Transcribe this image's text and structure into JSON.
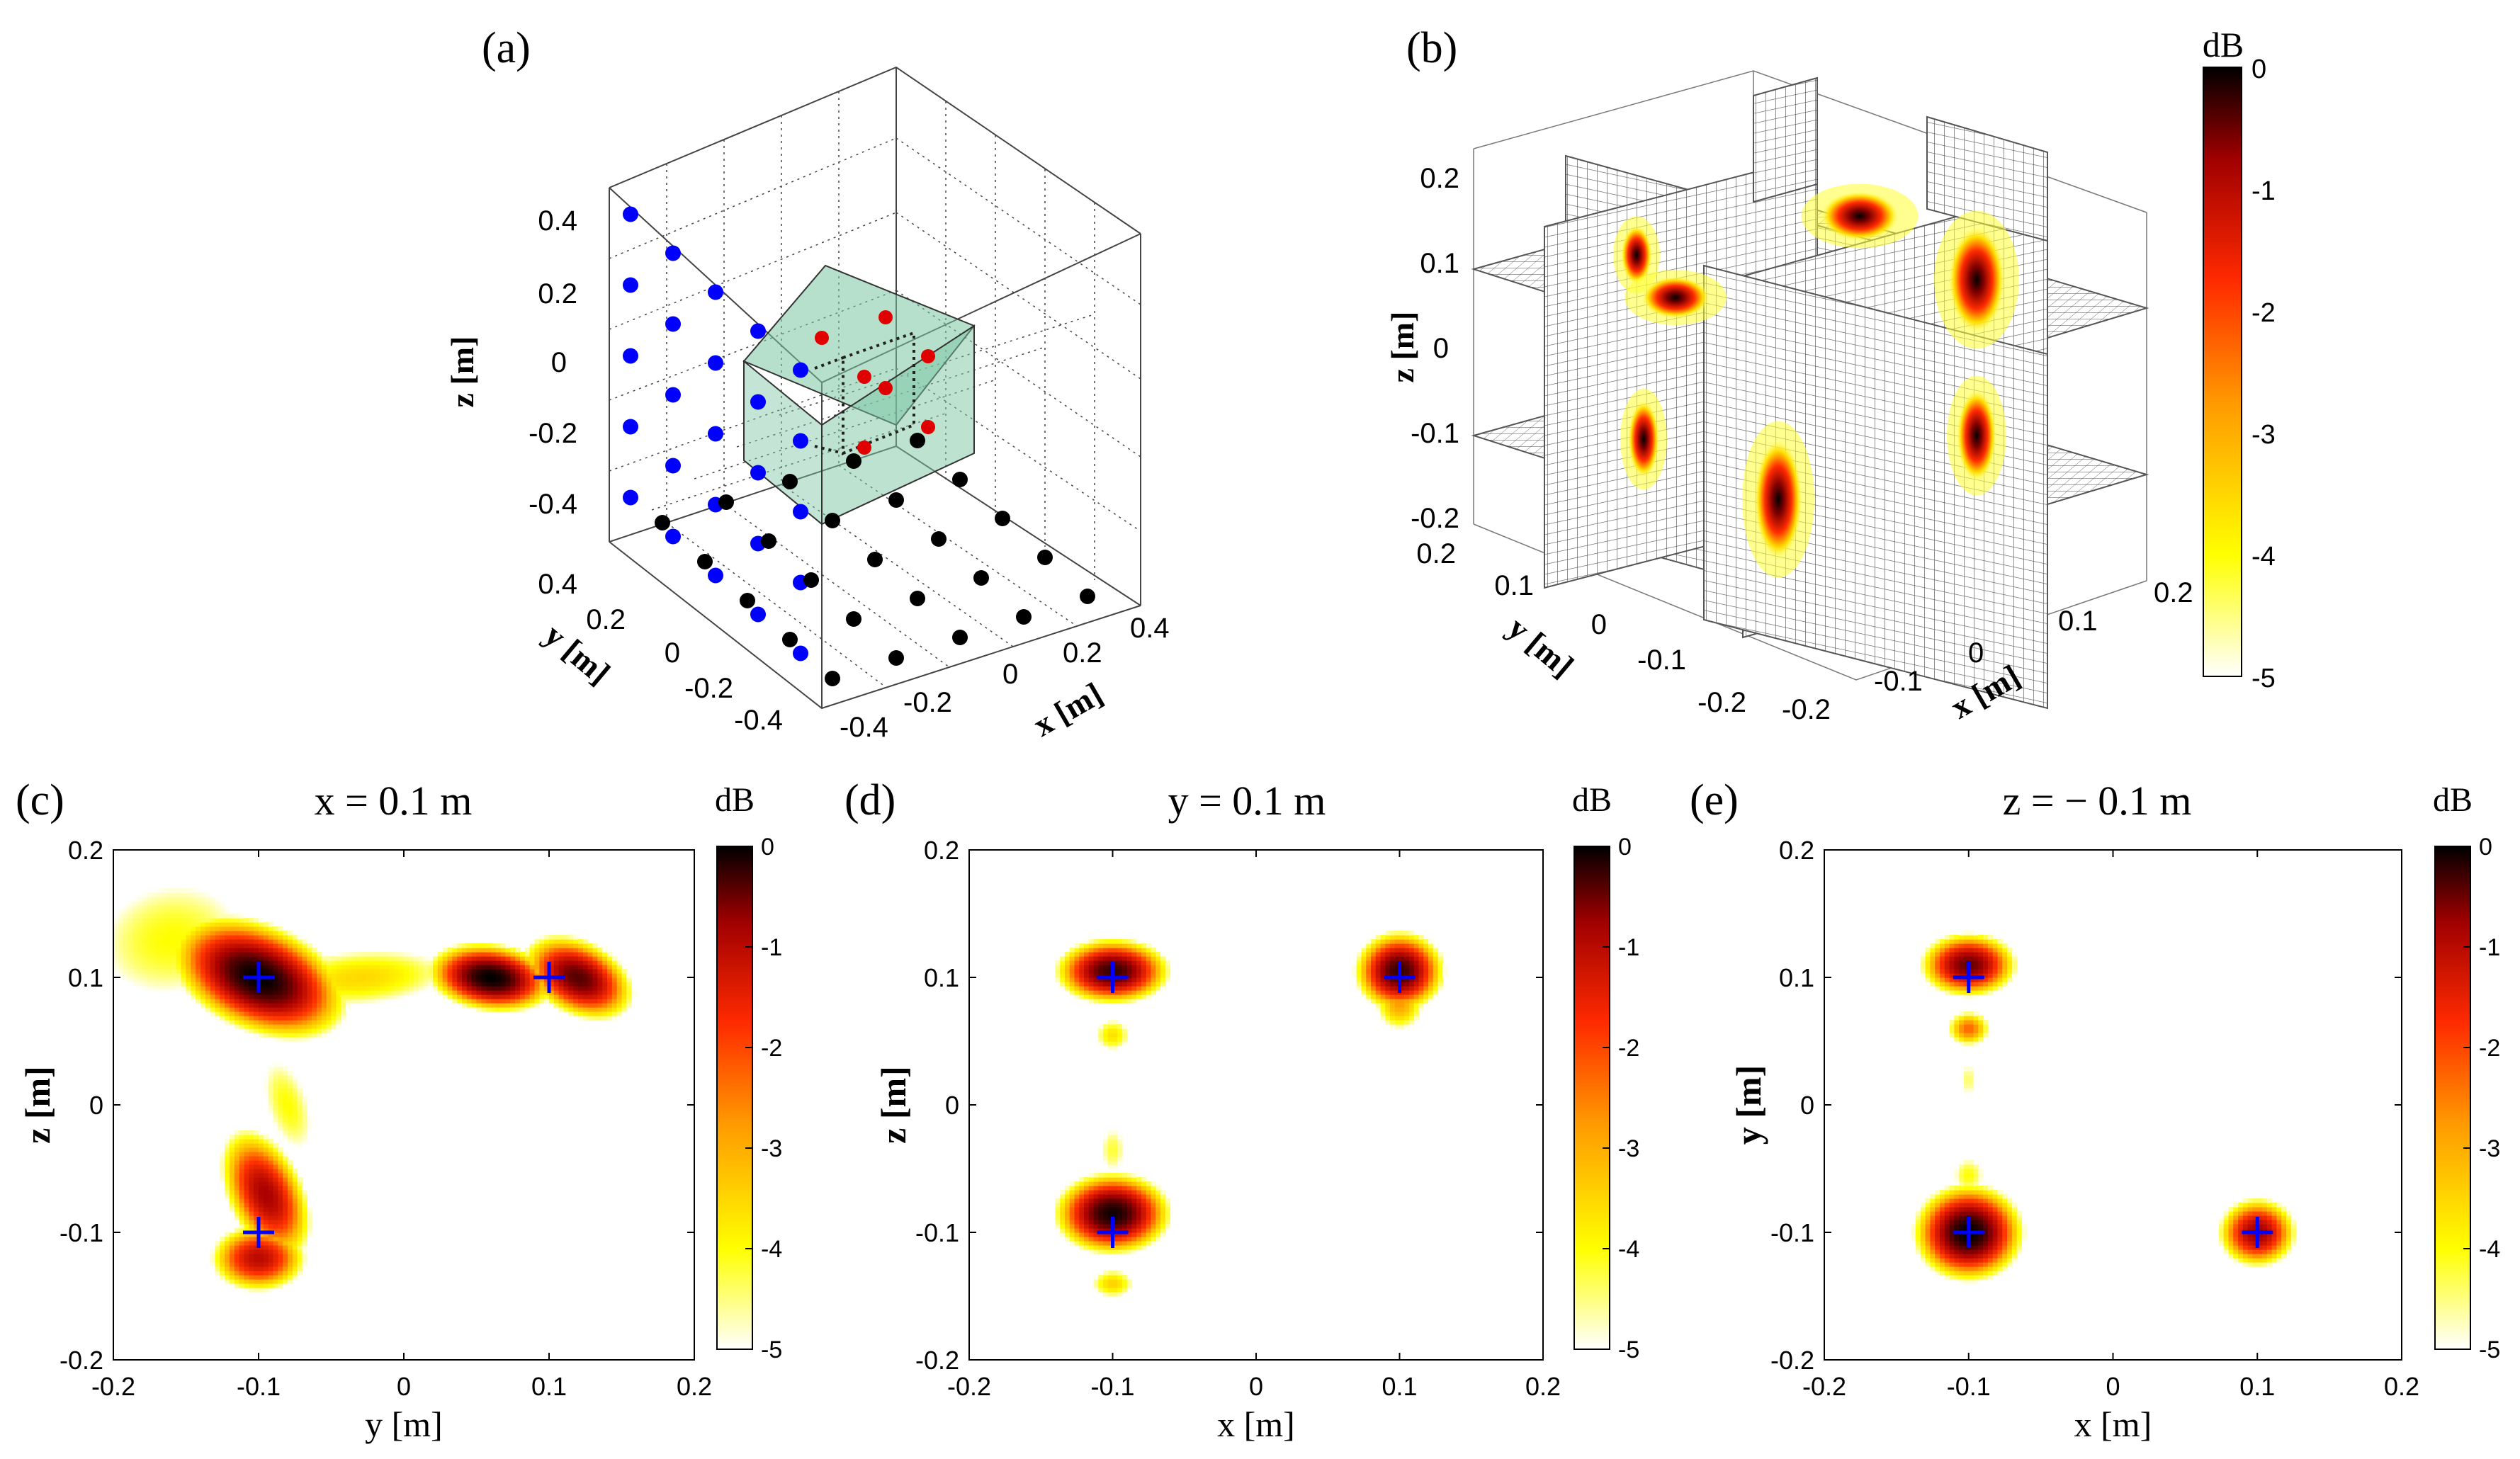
{
  "colorbar": {
    "unit": "dB",
    "ticks": [
      0,
      -1,
      -2,
      -3,
      -4,
      -5
    ],
    "colormap": [
      "#ffffff",
      "#ffff00",
      "#ff9900",
      "#ff2a00",
      "#a00000",
      "#000000"
    ]
  },
  "markers": {
    "cross_color": "#0000ff"
  },
  "panels": {
    "a": {
      "label": "(a)",
      "type": "scatter3d",
      "xlabel": "x [m]",
      "ylabel": "y [m]",
      "zlabel": "z [m]",
      "xticks": [
        -0.4,
        -0.2,
        0,
        0.2,
        0.4
      ],
      "yticks": [
        -0.4,
        -0.2,
        0,
        0.2,
        0.4
      ],
      "zticks": [
        -0.4,
        -0.2,
        0,
        0.2,
        0.4
      ],
      "lim": [
        -0.5,
        0.5
      ],
      "volume": {
        "x": [
          -0.2,
          0.2
        ],
        "y": [
          -0.2,
          0.2
        ],
        "z": [
          -0.2,
          0.2
        ],
        "color": "#7cc6a2"
      },
      "groups": [
        {
          "name": "sensors-plane-x",
          "color": "#0000ff",
          "x_const": -0.5,
          "values": [
            -0.4,
            -0.2,
            0,
            0.2,
            0.4
          ]
        },
        {
          "name": "sensors-plane-z",
          "color": "#000000",
          "z_const": -0.5,
          "values": [
            -0.4,
            -0.2,
            0,
            0.2,
            0.4
          ]
        },
        {
          "name": "sources",
          "color": "#e00000",
          "points": [
            [
              0.1,
              0.1,
              0.1
            ],
            [
              -0.1,
              0.1,
              0.1
            ],
            [
              0.1,
              -0.1,
              0.1
            ],
            [
              -0.1,
              -0.1,
              0.1
            ],
            [
              0.1,
              0.1,
              -0.1
            ],
            [
              -0.1,
              -0.1,
              -0.1
            ],
            [
              0.1,
              -0.1,
              -0.1
            ]
          ]
        }
      ]
    },
    "b": {
      "label": "(b)",
      "type": "slice3d",
      "xlabel": "x [m]",
      "ylabel": "y [m]",
      "zlabel": "z [m]",
      "xticks": [
        -0.2,
        -0.1,
        0,
        0.1,
        0.2
      ],
      "yticks": [
        -0.2,
        -0.1,
        0,
        0.1,
        0.2
      ],
      "zticks": [
        -0.2,
        -0.1,
        0,
        0.1,
        0.2
      ],
      "lim": [
        -0.2,
        0.2
      ],
      "slices": {
        "x": [
          -0.1,
          0.1
        ],
        "y": [
          -0.1,
          0.1
        ],
        "z": [
          -0.1,
          0.1
        ]
      },
      "sources": [
        [
          0.1,
          0.1,
          0.1
        ],
        [
          -0.1,
          0.1,
          0.1
        ],
        [
          0.1,
          -0.1,
          0.1
        ],
        [
          -0.1,
          -0.1,
          0.1
        ],
        [
          0.1,
          0.1,
          -0.1
        ],
        [
          -0.1,
          -0.1,
          -0.1
        ],
        [
          0.1,
          -0.1,
          -0.1
        ]
      ]
    },
    "c": {
      "label": "(c)",
      "type": "heatmap",
      "title": "x = 0.1 m",
      "xlabel": "y [m]",
      "ylabel": "z [m]",
      "xlim": [
        -0.2,
        0.2
      ],
      "ylim": [
        -0.2,
        0.2
      ],
      "xticks": [
        -0.2,
        -0.1,
        0,
        0.1,
        0.2
      ],
      "yticks": [
        -0.2,
        -0.1,
        0,
        0.1,
        0.2
      ],
      "blobs": [
        {
          "cx": -0.1,
          "cy": 0.1,
          "sx": 0.045,
          "sy": 0.028,
          "rot": -30,
          "level": 0
        },
        {
          "cx": 0.06,
          "cy": 0.1,
          "sx": 0.03,
          "sy": 0.018,
          "rot": -10,
          "level": 0
        },
        {
          "cx": 0.12,
          "cy": 0.1,
          "sx": 0.03,
          "sy": 0.02,
          "rot": -35,
          "level": -0.5
        },
        {
          "cx": -0.095,
          "cy": -0.07,
          "sx": 0.02,
          "sy": 0.04,
          "rot": 20,
          "level": -1
        },
        {
          "cx": -0.1,
          "cy": -0.12,
          "sx": 0.025,
          "sy": 0.02,
          "rot": 0,
          "level": -1.2
        },
        {
          "cx": -0.03,
          "cy": 0.1,
          "sx": 0.07,
          "sy": 0.025,
          "rot": 5,
          "level": -3.5
        },
        {
          "cx": -0.16,
          "cy": 0.13,
          "sx": 0.07,
          "sy": 0.06,
          "rot": 20,
          "level": -4
        },
        {
          "cx": -0.08,
          "cy": 0.0,
          "sx": 0.02,
          "sy": 0.05,
          "rot": 15,
          "level": -4
        }
      ],
      "markers": [
        [
          -0.1,
          0.1
        ],
        [
          0.1,
          0.1
        ],
        [
          -0.1,
          -0.1
        ]
      ]
    },
    "d": {
      "label": "(d)",
      "type": "heatmap",
      "title": "y = 0.1 m",
      "xlabel": "x [m]",
      "ylabel": "z [m]",
      "xlim": [
        -0.2,
        0.2
      ],
      "ylim": [
        -0.2,
        0.2
      ],
      "xticks": [
        -0.2,
        -0.1,
        0,
        0.1,
        0.2
      ],
      "yticks": [
        -0.2,
        -0.1,
        0,
        0.1,
        0.2
      ],
      "blobs": [
        {
          "cx": -0.1,
          "cy": 0.105,
          "sx": 0.028,
          "sy": 0.018,
          "rot": 0,
          "level": -0.3
        },
        {
          "cx": 0.1,
          "cy": 0.105,
          "sx": 0.022,
          "sy": 0.022,
          "rot": 0,
          "level": -0.3
        },
        {
          "cx": 0.1,
          "cy": 0.08,
          "sx": 0.016,
          "sy": 0.02,
          "rot": 0,
          "level": -2.8
        },
        {
          "cx": -0.1,
          "cy": 0.055,
          "sx": 0.014,
          "sy": 0.014,
          "rot": 0,
          "level": -3.6
        },
        {
          "cx": -0.1,
          "cy": -0.085,
          "sx": 0.028,
          "sy": 0.022,
          "rot": 0,
          "level": -0.1
        },
        {
          "cx": -0.1,
          "cy": -0.035,
          "sx": 0.012,
          "sy": 0.025,
          "rot": 0,
          "level": -4.2
        },
        {
          "cx": -0.1,
          "cy": -0.14,
          "sx": 0.016,
          "sy": 0.012,
          "rot": 0,
          "level": -3.4
        }
      ],
      "markers": [
        [
          -0.1,
          0.1
        ],
        [
          0.1,
          0.1
        ],
        [
          -0.1,
          -0.1
        ]
      ]
    },
    "e": {
      "label": "(e)",
      "type": "heatmap",
      "title": "z = − 0.1 m",
      "xlabel": "x [m]",
      "ylabel": "y [m]",
      "xlim": [
        -0.2,
        0.2
      ],
      "ylim": [
        -0.2,
        0.2
      ],
      "xticks": [
        -0.2,
        -0.1,
        0,
        0.1,
        0.2
      ],
      "yticks": [
        -0.2,
        -0.1,
        0,
        0.1,
        0.2
      ],
      "blobs": [
        {
          "cx": -0.1,
          "cy": 0.11,
          "sx": 0.024,
          "sy": 0.018,
          "rot": 0,
          "level": -0.6
        },
        {
          "cx": -0.1,
          "cy": 0.06,
          "sx": 0.013,
          "sy": 0.012,
          "rot": 0,
          "level": -2.4
        },
        {
          "cx": -0.1,
          "cy": 0.02,
          "sx": 0.01,
          "sy": 0.02,
          "rot": 0,
          "level": -4.4
        },
        {
          "cx": -0.1,
          "cy": -0.1,
          "sx": 0.026,
          "sy": 0.026,
          "rot": 0,
          "level": 0
        },
        {
          "cx": -0.1,
          "cy": -0.055,
          "sx": 0.014,
          "sy": 0.018,
          "rot": 0,
          "level": -4
        },
        {
          "cx": 0.1,
          "cy": -0.1,
          "sx": 0.02,
          "sy": 0.02,
          "rot": 0,
          "level": -0.9
        }
      ],
      "markers": [
        [
          -0.1,
          0.1
        ],
        [
          -0.1,
          -0.1
        ],
        [
          0.1,
          -0.1
        ]
      ]
    }
  }
}
